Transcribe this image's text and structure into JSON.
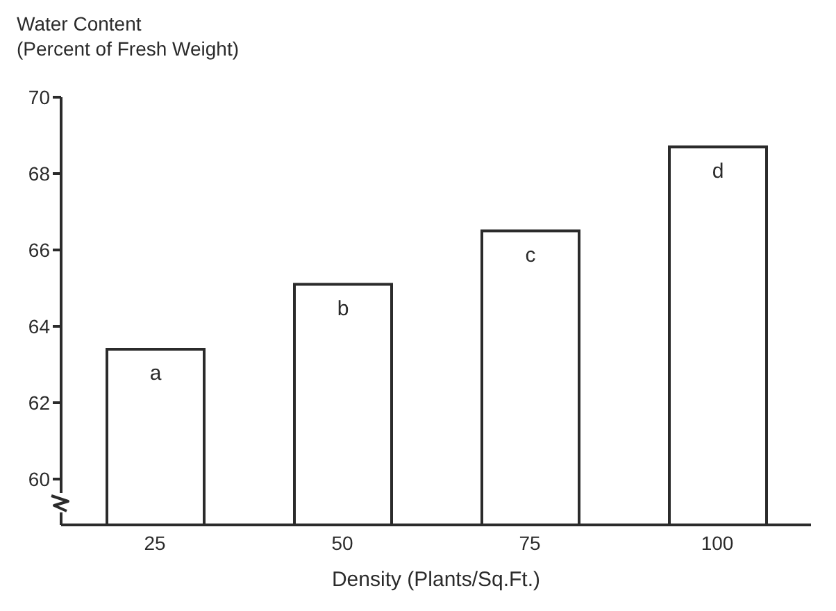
{
  "chart_data": {
    "type": "bar",
    "xlabel": "Density (Plants/Sq.Ft.)",
    "ylabel": "Water Content\n(Percent of Fresh Weight)",
    "categories": [
      "25",
      "50",
      "75",
      "100"
    ],
    "values": [
      63.4,
      65.1,
      66.5,
      68.7
    ],
    "color": "#ffffff",
    "ylim": [
      58.8,
      70
    ],
    "yticks": [
      60,
      62,
      64,
      66,
      68,
      70
    ],
    "grid": false,
    "legend": false,
    "annotations": [
      {
        "text": "a",
        "x": "25",
        "y": 63.4
      },
      {
        "text": "b",
        "x": "50",
        "y": 65.1
      },
      {
        "text": "c",
        "x": "75",
        "y": 66.5
      },
      {
        "text": "d",
        "x": "100",
        "y": 68.7
      }
    ]
  }
}
